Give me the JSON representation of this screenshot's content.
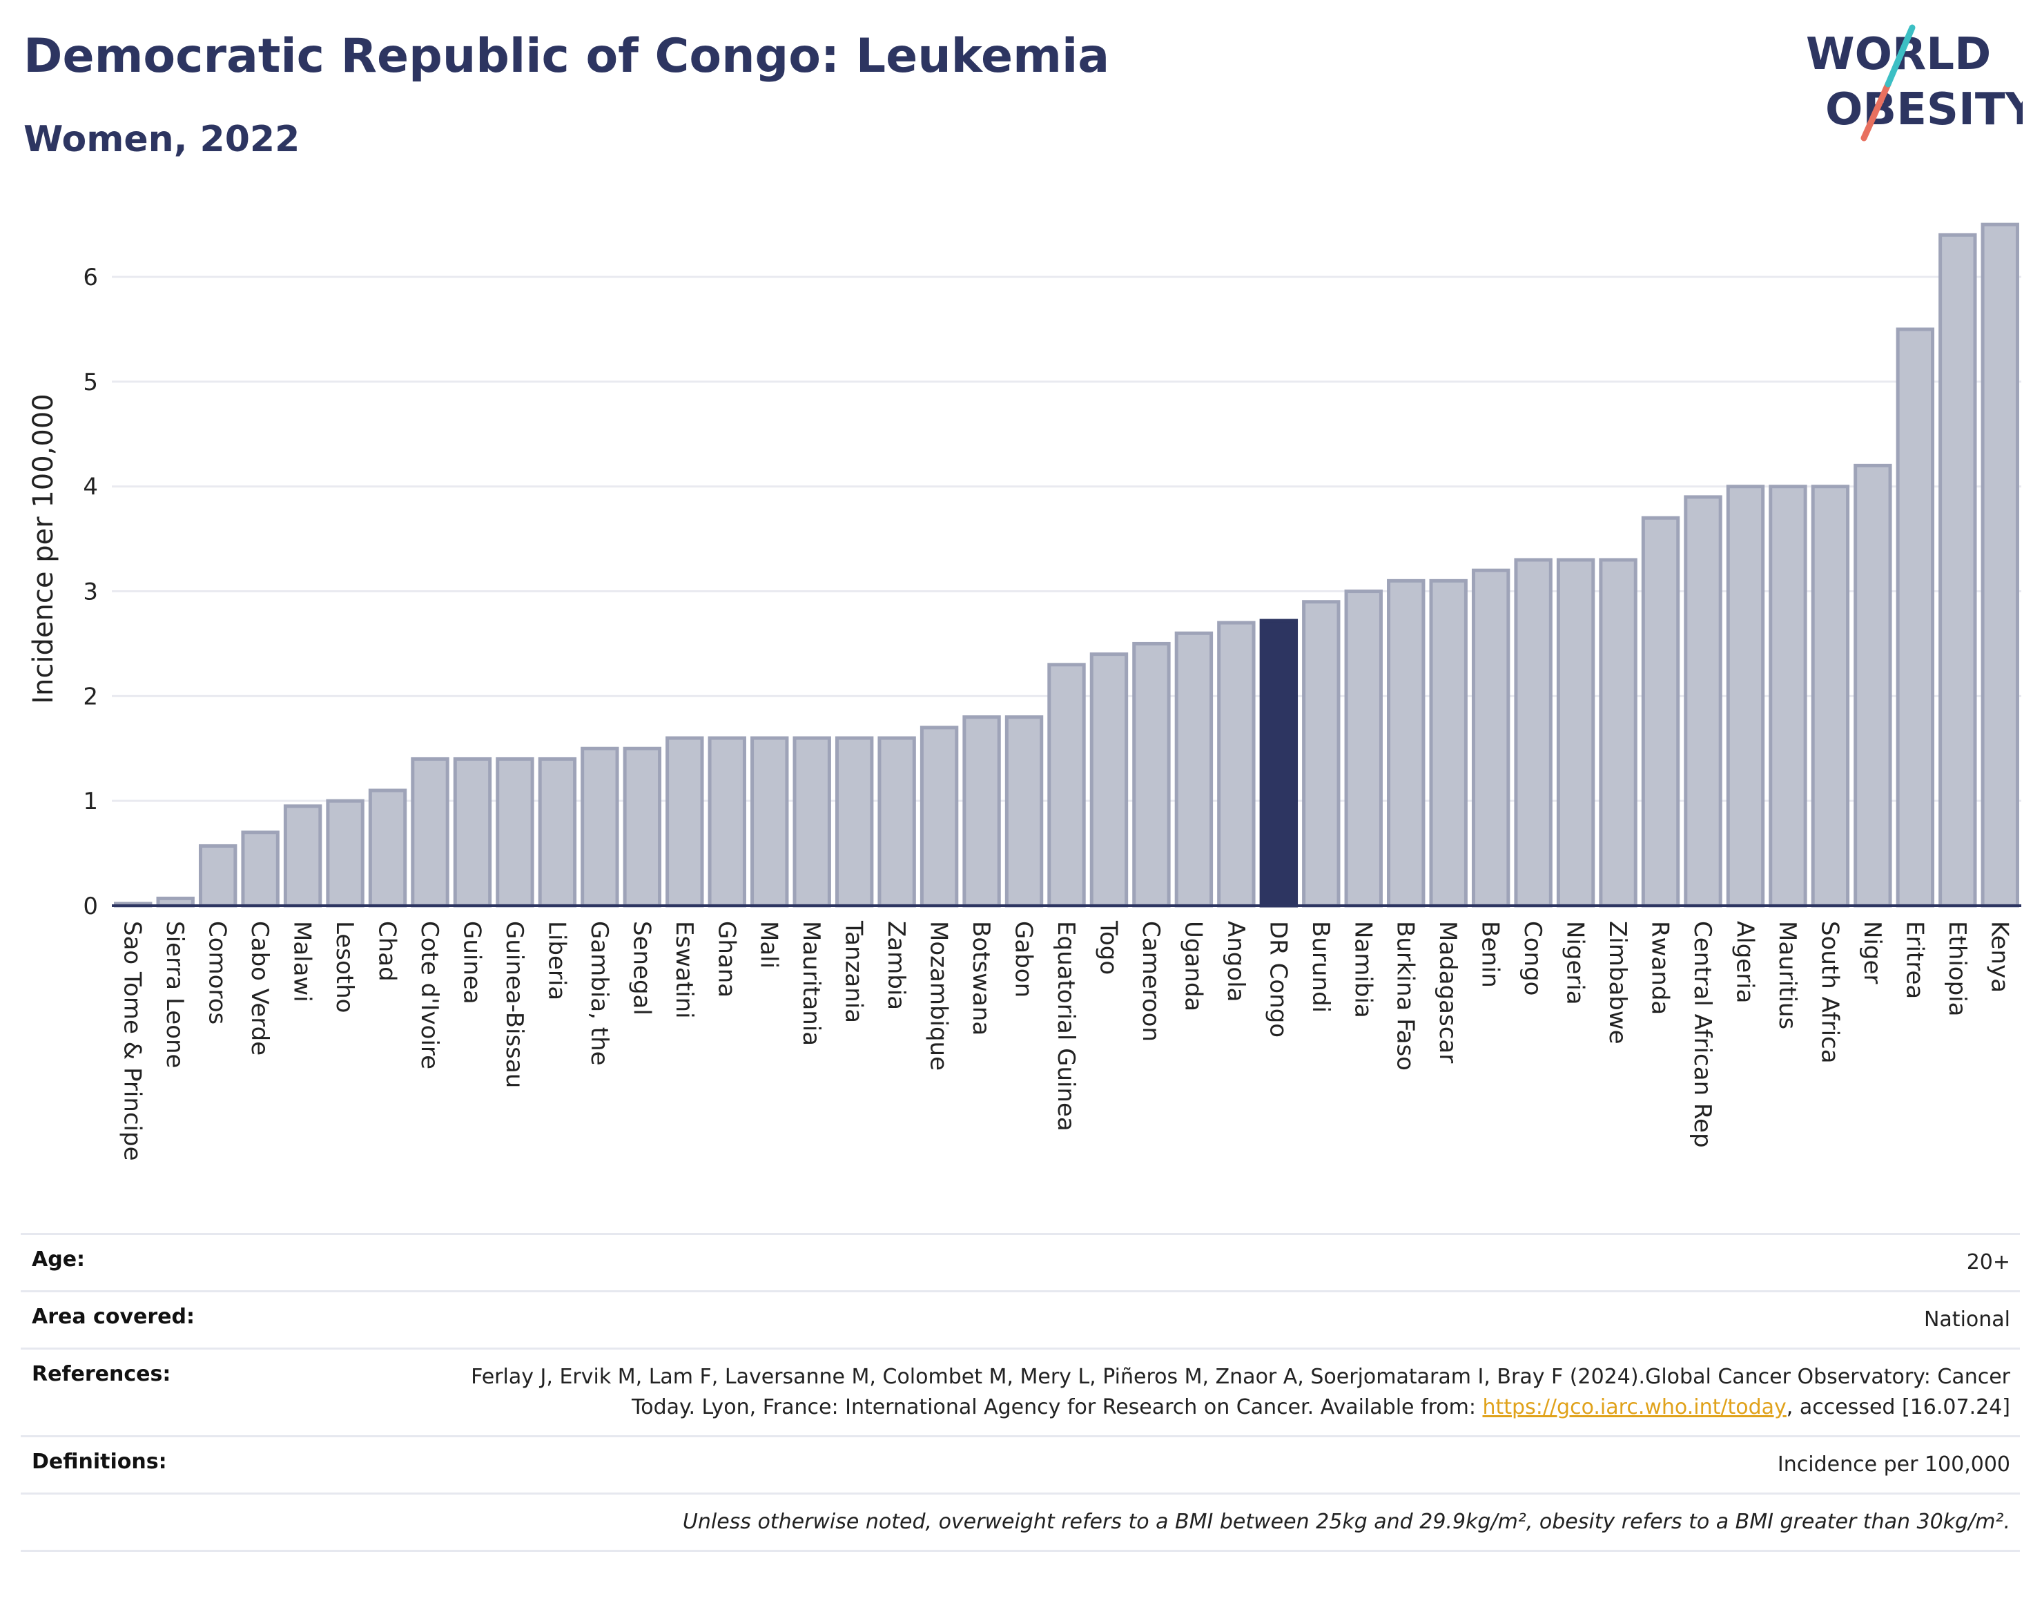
{
  "header": {
    "title": "Democratic Republic of Congo: Leukemia",
    "subtitle": "Women, 2022"
  },
  "logo": {
    "line1": "WORLD",
    "line2": "OBESITY",
    "colors": {
      "navy": "#2d3561",
      "teal": "#3cbfc4",
      "coral": "#e8705f"
    }
  },
  "chart_data": {
    "type": "bar",
    "ylabel": "Incidence per 100,000",
    "ylim": [
      0,
      6.6
    ],
    "yticks": [
      0,
      1,
      2,
      3,
      4,
      5,
      6
    ],
    "grid": true,
    "highlight": "DR Congo",
    "colors": {
      "bar": "#bec2cf",
      "bar_edge": "#9ea3b8",
      "highlight": "#2d3561",
      "axis": "#2d3561",
      "grid": "#e9eaf0"
    },
    "categories": [
      "Sao Tome & Principe",
      "Sierra Leone",
      "Comoros",
      "Cabo Verde",
      "Malawi",
      "Lesotho",
      "Chad",
      "Cote d'Ivoire",
      "Guinea",
      "Guinea-Bissau",
      "Liberia",
      "Gambia, the",
      "Senegal",
      "Eswatini",
      "Ghana",
      "Mali",
      "Mauritania",
      "Tanzania",
      "Zambia",
      "Mozambique",
      "Botswana",
      "Gabon",
      "Equatorial Guinea",
      "Togo",
      "Cameroon",
      "Uganda",
      "Angola",
      "DR Congo",
      "Burundi",
      "Namibia",
      "Burkina Faso",
      "Madagascar",
      "Benin",
      "Congo",
      "Nigeria",
      "Zimbabwe",
      "Rwanda",
      "Central African Rep",
      "Algeria",
      "Mauritius",
      "South Africa",
      "Niger",
      "Eritrea",
      "Ethiopia",
      "Kenya"
    ],
    "values": [
      0.02,
      0.07,
      0.57,
      0.7,
      0.95,
      1.0,
      1.1,
      1.4,
      1.4,
      1.4,
      1.4,
      1.5,
      1.5,
      1.6,
      1.6,
      1.6,
      1.6,
      1.6,
      1.6,
      1.7,
      1.8,
      1.8,
      2.3,
      2.4,
      2.5,
      2.6,
      2.7,
      2.72,
      2.9,
      3.0,
      3.1,
      3.1,
      3.2,
      3.3,
      3.3,
      3.3,
      3.7,
      3.9,
      4.0,
      4.0,
      4.0,
      4.2,
      5.5,
      6.4,
      6.5
    ]
  },
  "meta": {
    "age": {
      "label": "Age:",
      "value": "20+"
    },
    "area": {
      "label": "Area covered:",
      "value": "National"
    },
    "references": {
      "label": "References:",
      "text1": "Ferlay J, Ervik M, Lam F, Laversanne M, Colombet M, Mery L, Piñeros M, Znaor A, Soerjomataram I, Bray F (2024).Global Cancer Observatory: Cancer Today. Lyon, France: International Agency for Research on Cancer. Available from: ",
      "link": "https://gco.iarc.who.int/today",
      "text2": ", accessed [16.07.24]"
    },
    "definitions": {
      "label": "Definitions:",
      "value": "Incidence per 100,000"
    },
    "note": "Unless otherwise noted, overweight refers to a BMI between 25kg and 29.9kg/m², obesity refers to a BMI greater than 30kg/m²."
  }
}
